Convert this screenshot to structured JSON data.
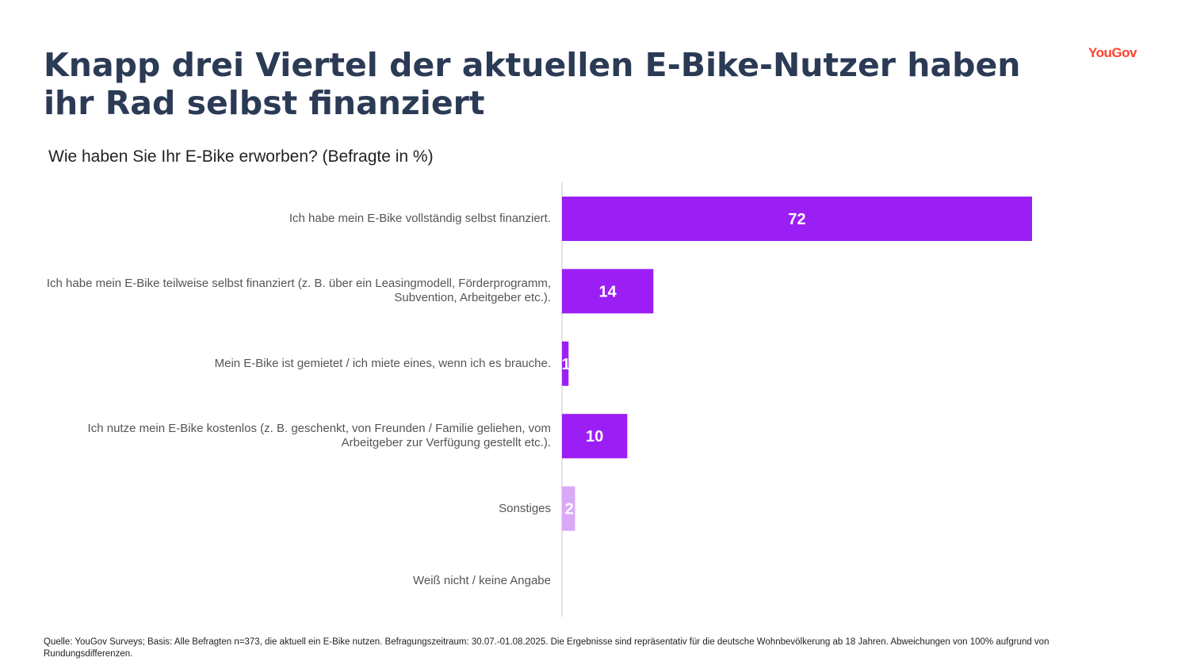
{
  "title": "Knapp drei Viertel der aktuellen E-Bike-Nutzer haben ihr Rad selbst finanziert",
  "logo_text": "YouGov",
  "footnote": "Quelle: YouGov Surveys; Basis: Alle Befragten n=373, die aktuell ein E-Bike nutzen. Befragungszeitraum: 30.07.-01.08.2025. Die Ergebnisse sind repräsentativ für die deutsche Wohnbevölkerung ab 18 Jahren. Abweichungen von 100% aufgrund von Rundungsdifferenzen.",
  "colors": {
    "title": "#2b3a55",
    "bar_primary": "#9b1ff5",
    "bar_secondary": "#d9a8f7",
    "logo": "#ff412c",
    "axis": "#d9d9d9"
  },
  "chart_data": {
    "type": "bar",
    "orientation": "horizontal",
    "title": "Wie haben Sie Ihr E-Bike erworben? (Befragte in %)",
    "categories": [
      "Ich habe mein E-Bike vollständig selbst finanziert.",
      "Ich habe mein E-Bike teilweise selbst finanziert (z. B. über ein Leasingmodell, Förderprogramm, Subvention, Arbeitgeber etc.).",
      "Mein E-Bike ist gemietet / ich miete eines, wenn ich es brauche.",
      "Ich nutze mein E-Bike kostenlos (z. B. geschenkt, von Freunden / Familie geliehen, vom Arbeitgeber zur Verfügung gestellt etc.).",
      "Sonstiges",
      "Weiß nicht / keine Angabe"
    ],
    "values": [
      72,
      14,
      1,
      10,
      2,
      0
    ],
    "value_labels": [
      "72",
      "14",
      "1",
      "10",
      "2",
      ""
    ],
    "bar_colors": [
      "#9b1ff5",
      "#9b1ff5",
      "#9b1ff5",
      "#9b1ff5",
      "#d9a8f7",
      "#d9a8f7"
    ],
    "xlim": [
      0,
      100
    ],
    "grid": false,
    "legend": "none"
  }
}
